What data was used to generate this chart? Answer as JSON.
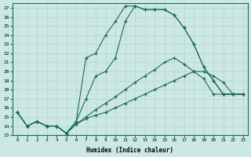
{
  "background_color": "#cce8e2",
  "grid_color": "#b8d8d0",
  "line_color": "#1a6b5a",
  "xlabel": "Humidex (Indice chaleur)",
  "xlim": [
    -0.5,
    23.5
  ],
  "ylim": [
    13,
    27.5
  ],
  "xticks": [
    0,
    1,
    2,
    3,
    4,
    5,
    6,
    7,
    8,
    9,
    10,
    11,
    12,
    13,
    14,
    15,
    16,
    17,
    18,
    19,
    20,
    21,
    22,
    23
  ],
  "yticks": [
    13,
    14,
    15,
    16,
    17,
    18,
    19,
    20,
    21,
    22,
    23,
    24,
    25,
    26,
    27
  ],
  "line1_x": [
    0,
    1,
    2,
    3,
    4,
    5,
    6,
    7,
    8,
    9,
    10,
    11,
    12,
    13,
    14,
    15,
    16,
    17,
    18,
    19,
    20,
    21,
    22,
    23
  ],
  "line1_y": [
    15.5,
    14.0,
    14.5,
    14.0,
    14.0,
    13.2,
    14.5,
    21.5,
    22.0,
    24.0,
    25.5,
    27.2,
    27.2,
    26.8,
    26.8,
    26.8,
    26.2,
    24.8,
    23.0,
    20.5,
    19.0,
    17.5,
    17.5,
    17.5
  ],
  "line2_x": [
    0,
    1,
    2,
    3,
    4,
    5,
    6,
    7,
    8,
    9,
    10,
    11,
    12,
    13,
    14,
    15,
    16,
    17,
    18,
    19,
    20,
    21,
    22,
    23
  ],
  "line2_y": [
    15.5,
    14.0,
    14.5,
    14.0,
    14.0,
    13.2,
    14.5,
    17.0,
    19.5,
    20.0,
    21.5,
    25.5,
    27.2,
    26.8,
    26.8,
    26.8,
    26.2,
    24.8,
    23.0,
    20.5,
    19.0,
    17.5,
    17.5,
    17.5
  ],
  "line3_x": [
    0,
    1,
    2,
    3,
    4,
    5,
    6,
    7,
    8,
    9,
    10,
    11,
    12,
    13,
    14,
    15,
    16,
    17,
    18,
    19,
    20,
    21,
    22,
    23
  ],
  "line3_y": [
    15.5,
    14.0,
    14.5,
    14.0,
    14.0,
    13.2,
    14.2,
    15.0,
    15.8,
    16.5,
    17.2,
    18.0,
    18.8,
    19.5,
    20.2,
    21.0,
    21.5,
    20.8,
    20.0,
    19.2,
    17.5,
    17.5,
    17.5,
    17.5
  ],
  "line4_x": [
    0,
    1,
    2,
    3,
    4,
    5,
    6,
    7,
    8,
    9,
    10,
    11,
    12,
    13,
    14,
    15,
    16,
    17,
    18,
    19,
    20,
    21,
    22,
    23
  ],
  "line4_y": [
    15.5,
    14.0,
    14.5,
    14.0,
    14.0,
    13.2,
    14.2,
    14.8,
    15.2,
    15.5,
    16.0,
    16.5,
    17.0,
    17.5,
    18.0,
    18.5,
    19.0,
    19.5,
    20.0,
    20.0,
    19.5,
    18.8,
    17.5,
    17.5
  ]
}
